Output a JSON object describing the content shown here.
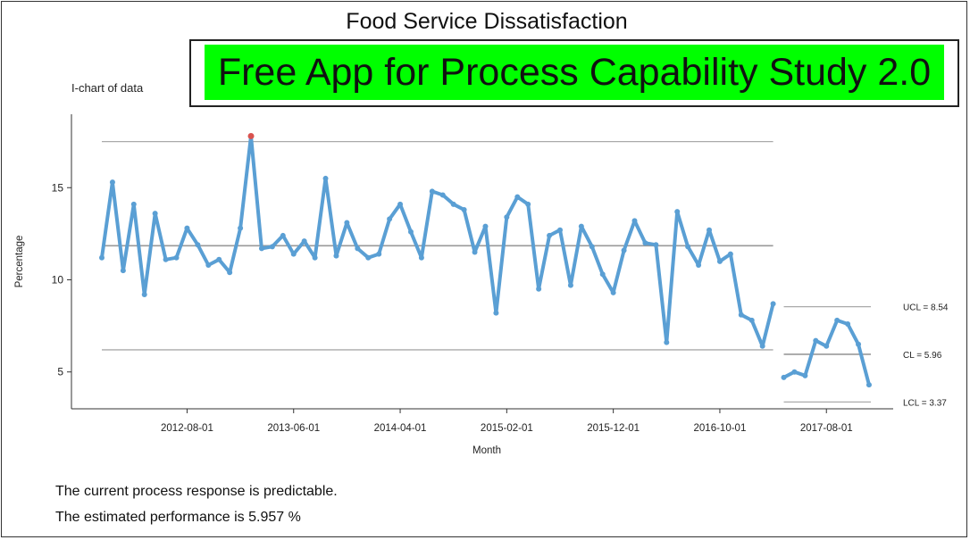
{
  "header": {
    "title": "Food Service Dissatisfaction",
    "banner": "Free App for Process Capability Study 2.0"
  },
  "colors": {
    "series": "#5a9fd4",
    "control_lines": "#aaaaaa",
    "banner_bg": "#00ff00",
    "outlier": "#d9534f"
  },
  "chart_data": {
    "type": "line",
    "subtitle": "I-chart of data",
    "xlabel": "Month",
    "ylabel": "Percentage",
    "ylim": [
      3,
      18.5
    ],
    "yticks": [
      5,
      10,
      15
    ],
    "grid": false,
    "xticks": [
      "2012-08-01",
      "2013-06-01",
      "2014-04-01",
      "2015-02-01",
      "2015-12-01",
      "2016-10-01",
      "2017-08-01"
    ],
    "x_start": "2011-12-01",
    "xtick_indices": [
      8,
      18,
      28,
      38,
      48,
      58,
      68
    ],
    "phase_break_index": 64,
    "series": [
      {
        "phase": 1,
        "values": [
          11.2,
          15.3,
          10.5,
          14.1,
          9.2,
          13.6,
          11.1,
          11.2,
          12.8,
          11.9,
          10.8,
          11.1,
          10.4,
          12.8,
          17.8,
          11.7,
          11.8,
          12.4,
          11.4,
          12.1,
          11.2,
          15.5,
          11.3,
          13.1,
          11.7,
          11.2,
          11.4,
          13.3,
          14.1,
          12.6,
          11.2,
          14.8,
          14.6,
          14.1,
          13.8,
          11.5,
          12.9,
          8.2,
          13.4,
          14.5,
          14.1,
          9.5,
          12.4,
          12.7,
          9.7,
          12.9,
          11.8,
          10.3,
          9.3,
          11.6,
          13.2,
          12.0,
          11.9,
          6.6,
          13.7,
          11.8,
          10.8,
          12.7,
          11.0,
          11.4,
          8.1,
          7.8,
          6.4,
          8.7
        ]
      },
      {
        "phase": 2,
        "values": [
          4.7,
          5.0,
          4.8,
          6.7,
          6.4,
          7.8,
          7.6,
          6.5,
          4.3
        ]
      }
    ],
    "outlier_index": 14,
    "phase1_limits": {
      "ucl": 17.5,
      "cl": 11.85,
      "lcl": 6.2
    },
    "phase2_limits": {
      "ucl": 8.54,
      "cl": 5.96,
      "lcl": 3.37
    },
    "limit_labels": {
      "ucl": "UCL = 8.54",
      "cl": "CL = 5.96",
      "lcl": "LCL = 3.37"
    }
  },
  "summary": {
    "line1": "The current process response is predictable.",
    "line2": "The estimated performance is 5.957 %"
  }
}
